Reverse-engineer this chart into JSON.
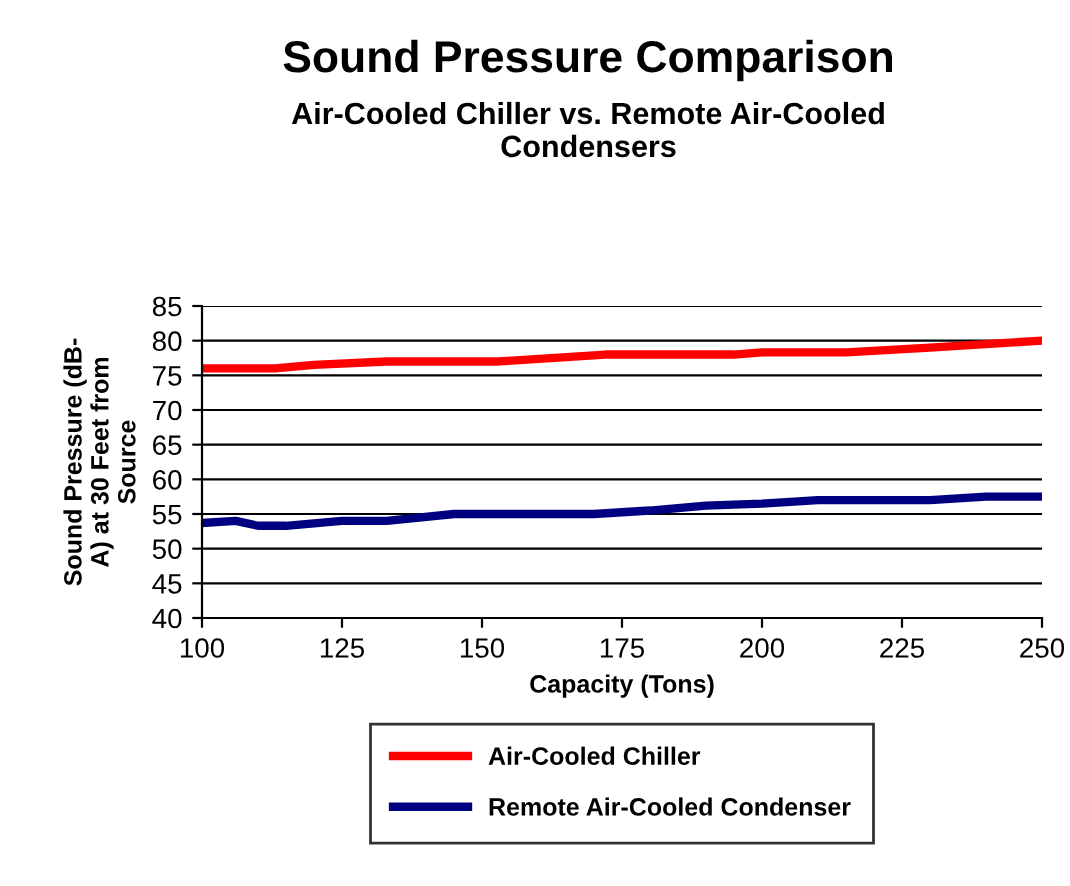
{
  "chart_data": {
    "type": "line",
    "title": "Sound Pressure Comparison",
    "subtitle": "Air-Cooled Chiller vs. Remote Air-Cooled\nCondensers",
    "xlabel": "Capacity (Tons)",
    "ylabel": "Sound Pressure (dB-\nA) at 30 Feet from\nSource",
    "xlim": [
      100,
      250
    ],
    "xticks": [
      100,
      125,
      150,
      175,
      200,
      225,
      250
    ],
    "ylim": [
      40,
      85
    ],
    "yticks": [
      40,
      45,
      50,
      55,
      60,
      65,
      70,
      75,
      80,
      85
    ],
    "grid": "y",
    "legend": "bottom",
    "marker": "none",
    "line_style": "solid",
    "series": [
      {
        "name": "Air-Cooled Chiller",
        "color": "#ff0000",
        "x": [
          100,
          113,
          120,
          133,
          153,
          172,
          195,
          200,
          215,
          230,
          250
        ],
        "values": [
          76,
          76,
          76.5,
          77,
          77,
          78,
          78,
          78.3,
          78.3,
          79,
          80
        ]
      },
      {
        "name": "Remote Air-Cooled Condenser",
        "color": "#000080",
        "x": [
          100,
          106,
          110,
          115,
          125,
          133,
          145,
          170,
          180,
          190,
          200,
          210,
          230,
          240,
          250
        ],
        "values": [
          53.7,
          54,
          53.3,
          53.3,
          54,
          54,
          55,
          55,
          55.5,
          56.2,
          56.5,
          57,
          57,
          57.5,
          57.5
        ]
      }
    ]
  }
}
